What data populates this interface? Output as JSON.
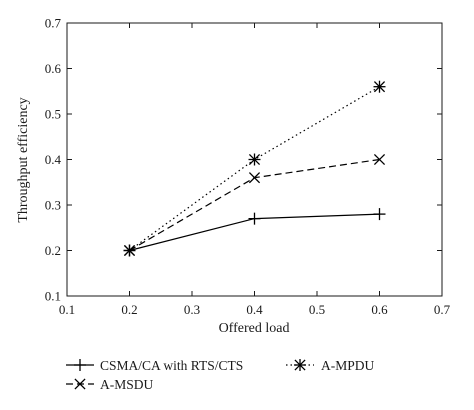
{
  "chart_data": {
    "type": "line",
    "xlabel": "Offered load",
    "ylabel": "Throughput efficiency",
    "xlim": [
      0.1,
      0.7
    ],
    "ylim": [
      0.1,
      0.7
    ],
    "x_ticks": [
      0.1,
      0.2,
      0.3,
      0.4,
      0.5,
      0.6,
      0.7
    ],
    "y_ticks": [
      0.1,
      0.2,
      0.3,
      0.4,
      0.5,
      0.6,
      0.7
    ],
    "x_tick_labels": [
      "0.1",
      "0.2",
      "0.3",
      "0.4",
      "0.5",
      "0.6",
      "0.7"
    ],
    "y_tick_labels": [
      "0.1",
      "0.2",
      "0.3",
      "0.4",
      "0.5",
      "0.6",
      "0.7"
    ],
    "grid": false,
    "legend_position": "bottom",
    "x": [
      0.2,
      0.4,
      0.6
    ],
    "series": [
      {
        "name": "CSMA/CA with RTS/CTS",
        "values": [
          0.2,
          0.27,
          0.28
        ],
        "line_style": "solid",
        "marker": "plus",
        "color": "#000000"
      },
      {
        "name": "A-MSDU",
        "values": [
          0.2,
          0.36,
          0.4
        ],
        "line_style": "dashed",
        "marker": "x",
        "color": "#000000"
      },
      {
        "name": "A-MPDU",
        "values": [
          0.2,
          0.4,
          0.56
        ],
        "line_style": "dotted",
        "marker": "asterisk",
        "color": "#000000"
      }
    ]
  }
}
